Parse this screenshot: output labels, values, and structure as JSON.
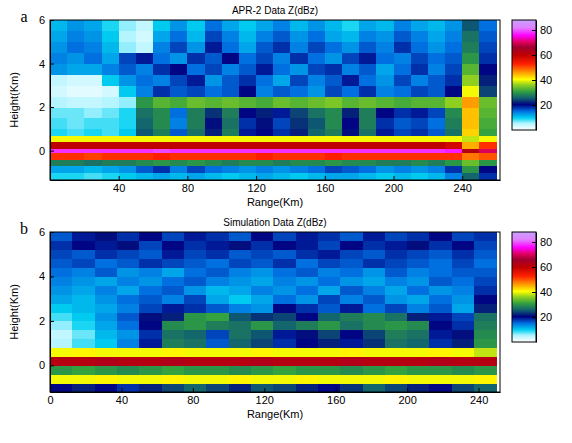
{
  "chart_data": [
    {
      "type": "heatmap",
      "panel_label": "a",
      "title": "APR-2 Data Z(dBz)",
      "xlabel": "Range(Km)",
      "ylabel": "Height(Km)",
      "xlim": [
        0,
        262
      ],
      "ylim": [
        -1.35,
        6
      ],
      "xticks": [
        40,
        80,
        120,
        160,
        200,
        240
      ],
      "yticks": [
        0,
        2,
        4,
        6
      ],
      "x_edges": [
        0,
        10,
        20,
        30,
        40,
        50,
        60,
        70,
        80,
        90,
        100,
        110,
        120,
        130,
        140,
        150,
        160,
        170,
        180,
        190,
        200,
        210,
        220,
        230,
        240,
        250,
        260
      ],
      "y_edges": [
        -1.35,
        -1,
        -0.7,
        -0.4,
        -0.1,
        0.1,
        0.4,
        0.7,
        1,
        1.5,
        2,
        2.5,
        3,
        3.5,
        4,
        4.5,
        5,
        5.5,
        6
      ],
      "z": [
        [
          9,
          9,
          8,
          9,
          10,
          11,
          12,
          11,
          12,
          11,
          10,
          11,
          12,
          11,
          10,
          11,
          12,
          12,
          11,
          10,
          11,
          10,
          11,
          14,
          26,
          18
        ],
        [
          12,
          12,
          11,
          12,
          13,
          16,
          18,
          14,
          17,
          15,
          14,
          13,
          14,
          13,
          14,
          15,
          17,
          16,
          15,
          13,
          14,
          13,
          14,
          18,
          30,
          20
        ],
        [
          28,
          28,
          27,
          28,
          28,
          29,
          30,
          29,
          30,
          29,
          28,
          29,
          29,
          28,
          29,
          29,
          30,
          29,
          29,
          28,
          28,
          29,
          28,
          30,
          34,
          30
        ],
        [
          52,
          52,
          51,
          52,
          52,
          52,
          53,
          52,
          52,
          52,
          52,
          52,
          53,
          52,
          52,
          52,
          53,
          52,
          52,
          52,
          52,
          52,
          52,
          52,
          48,
          50
        ],
        [
          78,
          78,
          78,
          78,
          78,
          78,
          79,
          78,
          78,
          78,
          78,
          78,
          78,
          78,
          78,
          78,
          78,
          78,
          78,
          78,
          78,
          78,
          78,
          77,
          62,
          70
        ],
        [
          60,
          60,
          60,
          60,
          60,
          60,
          60,
          60,
          60,
          60,
          60,
          60,
          60,
          60,
          60,
          60,
          60,
          60,
          60,
          60,
          60,
          60,
          60,
          58,
          45,
          52
        ],
        [
          40,
          40,
          40,
          40,
          40,
          40,
          40,
          40,
          40,
          40,
          40,
          40,
          40,
          40,
          40,
          40,
          40,
          40,
          40,
          40,
          40,
          40,
          40,
          40,
          38,
          40
        ],
        [
          9,
          8,
          9,
          8,
          10,
          25,
          28,
          16,
          27,
          22,
          28,
          19,
          20,
          18,
          22,
          26,
          28,
          21,
          27,
          19,
          17,
          18,
          16,
          27,
          43,
          31
        ],
        [
          8,
          7,
          8,
          8,
          9,
          26,
          29,
          14,
          28,
          21,
          27,
          18,
          21,
          17,
          23,
          25,
          29,
          20,
          28,
          18,
          16,
          17,
          15,
          28,
          44,
          32
        ],
        [
          7,
          7,
          6,
          7,
          9,
          27,
          29,
          15,
          28,
          23,
          28,
          20,
          22,
          19,
          24,
          27,
          29,
          22,
          28,
          20,
          18,
          19,
          17,
          29,
          44,
          33
        ],
        [
          5,
          4,
          4,
          5,
          6,
          30,
          33,
          32,
          34,
          33,
          34,
          33,
          32,
          34,
          33,
          34,
          35,
          33,
          34,
          33,
          32,
          33,
          33,
          36,
          46,
          34
        ],
        [
          3,
          2,
          2,
          3,
          10,
          14,
          18,
          16,
          17,
          15,
          16,
          20,
          14,
          16,
          15,
          13,
          17,
          15,
          18,
          14,
          15,
          17,
          16,
          20,
          40,
          24
        ],
        [
          4,
          3,
          3,
          10,
          13,
          15,
          14,
          17,
          19,
          13,
          16,
          18,
          15,
          12,
          17,
          14,
          16,
          19,
          15,
          13,
          17,
          14,
          16,
          18,
          36,
          22
        ],
        [
          13,
          12,
          12,
          14,
          16,
          14,
          18,
          20,
          15,
          17,
          14,
          16,
          19,
          15,
          13,
          17,
          18,
          14,
          16,
          12,
          15,
          18,
          14,
          17,
          33,
          20
        ],
        [
          14,
          13,
          15,
          12,
          17,
          19,
          15,
          13,
          18,
          16,
          20,
          15,
          17,
          14,
          18,
          15,
          13,
          17,
          19,
          15,
          14,
          17,
          15,
          16,
          30,
          18
        ],
        [
          13,
          15,
          14,
          11,
          6,
          4,
          14,
          17,
          13,
          19,
          15,
          12,
          16,
          18,
          14,
          17,
          15,
          13,
          16,
          14,
          18,
          15,
          13,
          15,
          28,
          17
        ],
        [
          12,
          14,
          13,
          10,
          5,
          3,
          12,
          15,
          11,
          17,
          14,
          11,
          14,
          16,
          13,
          15,
          12,
          11,
          14,
          13,
          16,
          14,
          12,
          14,
          27,
          16
        ],
        [
          11,
          13,
          12,
          9,
          6,
          4,
          10,
          13,
          10,
          15,
          12,
          10,
          12,
          14,
          11,
          13,
          11,
          9,
          12,
          11,
          14,
          12,
          11,
          13,
          25,
          15
        ]
      ],
      "colorbar": {
        "range": [
          0,
          88
        ],
        "ticks": [
          20,
          40,
          60,
          80
        ]
      }
    },
    {
      "type": "heatmap",
      "panel_label": "b",
      "title": "Simulation Data Z(dBz)",
      "xlabel": "Range(Km)",
      "ylabel": "Height(Km)",
      "xlim": [
        0,
        252
      ],
      "ylim": [
        -1.2,
        6
      ],
      "xticks": [
        0,
        40,
        80,
        120,
        160,
        200,
        240
      ],
      "yticks": [
        0,
        2,
        4,
        6
      ],
      "x_edges": [
        0,
        12.5,
        25,
        37.5,
        50,
        62.5,
        75,
        87.5,
        100,
        112.5,
        125,
        137.5,
        150,
        162.5,
        175,
        187.5,
        200,
        212.5,
        225,
        237.5,
        250
      ],
      "y_edges": [
        -1.2,
        -0.8,
        -0.4,
        0,
        0.4,
        0.8,
        1.2,
        1.6,
        2,
        2.4,
        2.8,
        3.2,
        3.6,
        4,
        4.4,
        4.8,
        5.2,
        5.6,
        6
      ],
      "z": [
        [
          20,
          22,
          20,
          18,
          22,
          24,
          26,
          24,
          22,
          25,
          24,
          22,
          20,
          23,
          26,
          24,
          22,
          20,
          24,
          26
        ],
        [
          40,
          40,
          41,
          40,
          40,
          41,
          40,
          40,
          41,
          40,
          40,
          41,
          40,
          40,
          40,
          41,
          40,
          40,
          40,
          41
        ],
        [
          30,
          31,
          30,
          29,
          30,
          31,
          30,
          30,
          29,
          30,
          31,
          30,
          30,
          29,
          30,
          31,
          30,
          30,
          29,
          30
        ],
        [
          62,
          62,
          63,
          62,
          62,
          63,
          62,
          62,
          62,
          63,
          62,
          62,
          62,
          63,
          62,
          62,
          62,
          63,
          62,
          62
        ],
        [
          40,
          41,
          40,
          40,
          40,
          41,
          40,
          40,
          40,
          41,
          40,
          40,
          40,
          41,
          40,
          40,
          40,
          41,
          40,
          38
        ],
        [
          5,
          8,
          10,
          14,
          19,
          28,
          27,
          16,
          26,
          24,
          18,
          20,
          22,
          19,
          23,
          27,
          26,
          18,
          22,
          30
        ],
        [
          4,
          7,
          11,
          13,
          18,
          27,
          26,
          17,
          27,
          25,
          19,
          21,
          24,
          20,
          24,
          28,
          27,
          19,
          21,
          29
        ],
        [
          6,
          9,
          12,
          15,
          20,
          29,
          30,
          28,
          27,
          30,
          26,
          28,
          30,
          27,
          29,
          30,
          29,
          20,
          18,
          28
        ],
        [
          8,
          10,
          13,
          16,
          21,
          22,
          30,
          31,
          25,
          23,
          24,
          20,
          26,
          28,
          29,
          27,
          22,
          19,
          17,
          27
        ],
        [
          10,
          11,
          12,
          14,
          17,
          19,
          18,
          16,
          14,
          13,
          20,
          18,
          16,
          19,
          15,
          17,
          14,
          16,
          12,
          22
        ],
        [
          12,
          11,
          13,
          15,
          16,
          14,
          17,
          12,
          10,
          12,
          15,
          13,
          17,
          14,
          16,
          13,
          12,
          15,
          13,
          20
        ],
        [
          13,
          12,
          14,
          12,
          15,
          16,
          13,
          11,
          12,
          14,
          13,
          15,
          12,
          16,
          14,
          12,
          15,
          13,
          14,
          18
        ],
        [
          14,
          13,
          12,
          14,
          13,
          15,
          16,
          14,
          13,
          12,
          14,
          13,
          15,
          13,
          12,
          14,
          13,
          16,
          15,
          17
        ],
        [
          15,
          14,
          16,
          13,
          14,
          12,
          15,
          16,
          14,
          13,
          15,
          16,
          14,
          15,
          13,
          16,
          14,
          15,
          16,
          16
        ],
        [
          16,
          17,
          15,
          16,
          18,
          17,
          16,
          15,
          17,
          16,
          18,
          15,
          17,
          16,
          18,
          17,
          16,
          15,
          17,
          15
        ],
        [
          17,
          16,
          18,
          17,
          16,
          19,
          17,
          18,
          16,
          17,
          16,
          18,
          19,
          17,
          16,
          18,
          17,
          16,
          18,
          16
        ],
        [
          18,
          20,
          19,
          21,
          17,
          20,
          18,
          19,
          21,
          18,
          20,
          19,
          17,
          20,
          18,
          19,
          21,
          18,
          20,
          17
        ],
        [
          16,
          19,
          21,
          18,
          20,
          17,
          19,
          18,
          16,
          20,
          17,
          19,
          18,
          16,
          19,
          17,
          18,
          20,
          17,
          18
        ]
      ],
      "colorbar": {
        "range": [
          0,
          88
        ],
        "ticks": [
          20,
          40,
          60,
          80
        ]
      }
    }
  ]
}
